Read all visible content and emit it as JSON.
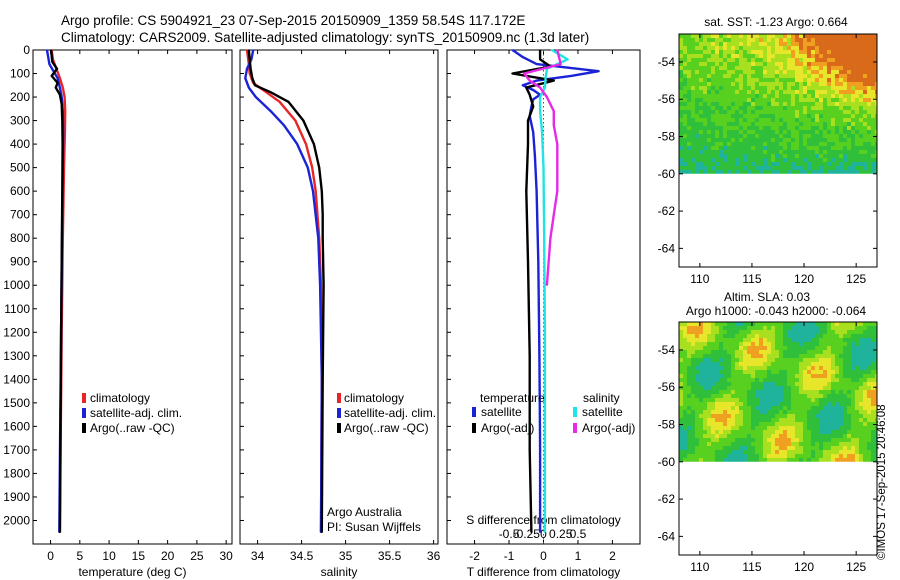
{
  "header": {
    "line1": "Argo profile: CS 5904921_23 07-Sep-2015 20150909_1359 58.54S 117.172E",
    "line2": "Climatology: CARS2009. Satellite-adjusted climatology: synTS_20150909.nc (1.3d later)"
  },
  "stamp": "©IMOS 17-Sep-2015 20:46:08",
  "colors": {
    "climatology": "#e8262a",
    "satellite": "#1a23d6",
    "argo": "#000000",
    "sat_salinity": "#22e3e3",
    "argo_salinity": "#e62ae6"
  },
  "chart_data": [
    {
      "id": "temperature",
      "type": "line",
      "xlabel": "temperature (deg C)",
      "ylabel": "",
      "xlim": [
        -3,
        31
      ],
      "ylim": [
        2100,
        0
      ],
      "xticks": [
        0,
        5,
        10,
        15,
        20,
        25,
        30
      ],
      "xtick_labels": [
        "0",
        "5",
        "10",
        "15",
        "20",
        "25",
        "30"
      ],
      "yticks": [
        0,
        100,
        200,
        300,
        400,
        500,
        600,
        700,
        800,
        900,
        1000,
        1100,
        1200,
        1300,
        1400,
        1500,
        1600,
        1700,
        1800,
        1900,
        2000
      ],
      "ytick_labels": [
        "0",
        "100",
        "200",
        "300",
        "400",
        "500",
        "600",
        "700",
        "800",
        "900",
        "1000",
        "1100",
        "1200",
        "1300",
        "1400",
        "1500",
        "1600",
        "1700",
        "1800",
        "1900",
        "2000"
      ],
      "legend": [
        "climatology",
        "satellite-adj. clim.",
        "Argo(..raw -QC)"
      ],
      "series": [
        {
          "name": "climatology",
          "color": "red",
          "depth": [
            0,
            40,
            80,
            120,
            160,
            200,
            260,
            350,
            500,
            800,
            1200,
            1600,
            2050
          ],
          "values": [
            0.2,
            0.4,
            1.0,
            1.6,
            2.1,
            2.4,
            2.5,
            2.45,
            2.3,
            2.1,
            1.9,
            1.75,
            1.6
          ]
        },
        {
          "name": "satellite-adj. clim.",
          "color": "blue",
          "depth": [
            0,
            30,
            60,
            90,
            120,
            160,
            200,
            260,
            350,
            500,
            800,
            1200,
            1600,
            2050
          ],
          "values": [
            -0.6,
            -0.4,
            -0.2,
            0.5,
            1.2,
            1.6,
            1.9,
            2.1,
            2.15,
            2.1,
            1.95,
            1.8,
            1.65,
            1.5
          ]
        },
        {
          "name": "Argo(..raw -QC)",
          "color": "black",
          "depth": [
            0,
            50,
            80,
            110,
            140,
            160,
            190,
            230,
            300,
            400,
            600,
            900,
            1200,
            1600,
            2050
          ],
          "values": [
            0.1,
            0.3,
            1.1,
            0.2,
            1.2,
            0.9,
            1.6,
            1.9,
            2.0,
            2.05,
            2.0,
            1.9,
            1.8,
            1.7,
            1.6
          ]
        }
      ],
      "legend_position": "bottom-right"
    },
    {
      "id": "salinity",
      "type": "line",
      "xlabel": "salinity",
      "ylabel": "",
      "xlim": [
        33.8,
        36.05
      ],
      "ylim": [
        2100,
        0
      ],
      "xticks": [
        34,
        34.5,
        35,
        35.5,
        36
      ],
      "xtick_labels": [
        "34",
        "34.5",
        "35",
        "35.5",
        "36"
      ],
      "legend": [
        "climatology",
        "satellite-adj. clim.",
        "Argo(..raw -QC)"
      ],
      "annotation": [
        "Argo Australia",
        "PI: Susan Wijffels"
      ],
      "series": [
        {
          "name": "climatology",
          "color": "red",
          "depth": [
            0,
            60,
            100,
            140,
            180,
            220,
            300,
            400,
            500,
            600,
            800,
            1000,
            1400,
            2050
          ],
          "values": [
            33.88,
            33.9,
            33.91,
            33.95,
            34.1,
            34.25,
            34.43,
            34.55,
            34.62,
            34.66,
            34.7,
            34.72,
            34.73,
            34.72
          ]
        },
        {
          "name": "satellite-adj. clim.",
          "color": "blue",
          "depth": [
            0,
            40,
            80,
            120,
            160,
            200,
            260,
            320,
            400,
            500,
            600,
            800,
            1000,
            1400,
            2050
          ],
          "values": [
            33.95,
            33.93,
            33.88,
            33.86,
            33.9,
            33.98,
            34.15,
            34.3,
            34.45,
            34.57,
            34.63,
            34.69,
            34.71,
            34.73,
            34.72
          ]
        },
        {
          "name": "Argo(..raw -QC)",
          "color": "black",
          "depth": [
            0,
            80,
            120,
            150,
            180,
            220,
            300,
            400,
            500,
            600,
            700,
            800,
            1000,
            1400,
            2050
          ],
          "values": [
            33.9,
            33.92,
            33.94,
            33.97,
            34.15,
            34.35,
            34.52,
            34.64,
            34.7,
            34.73,
            34.74,
            34.74,
            34.75,
            34.74,
            34.73
          ]
        }
      ],
      "legend_position": "bottom-right"
    },
    {
      "id": "difference",
      "type": "line",
      "xlabel": "T difference from climatology",
      "top_label": "S difference from climatology",
      "xlim": [
        -2.8,
        2.8
      ],
      "ylim": [
        2100,
        0
      ],
      "xticks": [
        -2,
        -1,
        0,
        1,
        2
      ],
      "xtick_labels": [
        "-2",
        "-1",
        "0",
        "1",
        "2"
      ],
      "s_xticks": [
        -0.5,
        -0.25,
        0,
        0.25,
        0.5
      ],
      "s_xtick_labels": [
        "-0.5",
        "-0.25",
        "0",
        "0.25",
        "0.5"
      ],
      "legend": {
        "temperature_header": "temperature",
        "salinity_header": "salinity",
        "temperature": [
          "satellite",
          "Argo(-adj)"
        ],
        "salinity": [
          "satellite",
          "Argo(-adj)"
        ]
      },
      "series": [
        {
          "name": "temperature satellite",
          "color": "blue",
          "depth": [
            0,
            30,
            60,
            90,
            110,
            130,
            150,
            170,
            190,
            210,
            240,
            280,
            350,
            450,
            600,
            900,
            1300,
            1700,
            2050
          ],
          "values": [
            -0.9,
            -0.6,
            -0.2,
            1.6,
            0.8,
            -0.2,
            -0.6,
            -0.3,
            -0.1,
            -0.3,
            -0.35,
            -0.4,
            -0.3,
            -0.25,
            -0.2,
            -0.15,
            -0.12,
            -0.1,
            -0.1
          ]
        },
        {
          "name": "temperature Argo(-adj)",
          "color": "black",
          "depth": [
            0,
            40,
            70,
            100,
            130,
            160,
            190,
            240,
            300,
            400,
            600,
            900,
            1300,
            1700,
            2050
          ],
          "values": [
            -0.1,
            -0.1,
            0.2,
            -0.9,
            0.3,
            -0.5,
            -0.4,
            -0.3,
            -0.45,
            -0.45,
            -0.5,
            -0.45,
            -0.4,
            -0.4,
            -0.35
          ]
        },
        {
          "name": "salinity satellite",
          "color": "cyan",
          "depth": [
            0,
            40,
            80,
            120,
            160,
            200,
            260,
            350,
            500,
            800,
            1200,
            1600,
            2050
          ],
          "values": [
            0.12,
            0.35,
            0.05,
            0.03,
            0.02,
            -0.05,
            -0.05,
            -0.02,
            0,
            0.01,
            0.02,
            0.02,
            0.02
          ]
        },
        {
          "name": "salinity Argo(-adj)",
          "color": "magenta",
          "depth": [
            0,
            60,
            100,
            130,
            160,
            200,
            260,
            320,
            400,
            500,
            600,
            700,
            800,
            1000
          ],
          "values": [
            0.2,
            0.25,
            -0.28,
            -0.2,
            -0.05,
            0.05,
            0.15,
            0.15,
            0.2,
            0.2,
            0.2,
            0.15,
            0.1,
            0.05
          ]
        }
      ]
    },
    {
      "id": "sst_map",
      "type": "heatmap",
      "title": "sat. SST: -1.23 Argo: 0.664",
      "xlim": [
        108,
        127
      ],
      "ylim": [
        -65,
        -52.5
      ],
      "xticks": [
        110,
        115,
        120,
        125
      ],
      "xtick_labels": [
        "110",
        "115",
        "120",
        "125"
      ],
      "yticks": [
        -54,
        -56,
        -58,
        -60,
        -62,
        -64
      ],
      "ytick_labels": [
        "-54",
        "-56",
        "-58",
        "-60",
        "-62",
        "-64"
      ],
      "data_south_limit": -60
    },
    {
      "id": "sla_map",
      "type": "heatmap",
      "title": [
        "Altim. SLA: 0.03",
        "Argo h1000: -0.043 h2000: -0.064"
      ],
      "xlim": [
        108,
        127
      ],
      "ylim": [
        -65,
        -52.5
      ],
      "xticks": [
        110,
        115,
        120,
        125
      ],
      "xtick_labels": [
        "110",
        "115",
        "120",
        "125"
      ],
      "yticks": [
        -54,
        -56,
        -58,
        -60,
        -62,
        -64
      ],
      "ytick_labels": [
        "-54",
        "-56",
        "-58",
        "-60",
        "-62",
        "-64"
      ],
      "data_south_limit": -60
    }
  ]
}
